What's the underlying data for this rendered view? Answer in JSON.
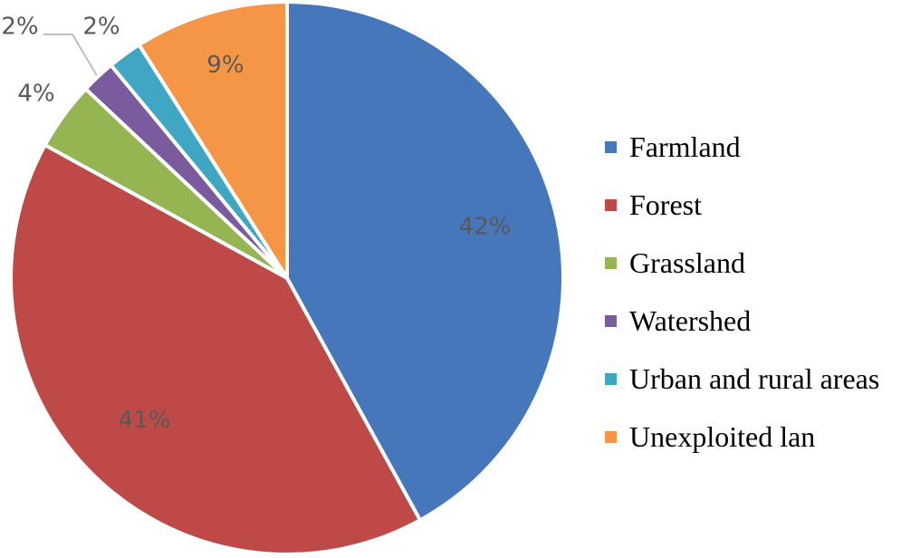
{
  "chart_data": {
    "type": "pie",
    "title": "",
    "series": [
      {
        "values": [
          42,
          41,
          4,
          2,
          2,
          9
        ]
      }
    ],
    "categories": [
      "Farmland",
      "Forest",
      "Grassland",
      "Watershed",
      "Urban and rural areas",
      "Unexploited lan"
    ],
    "data_labels": [
      "42%",
      "41%",
      "4%",
      "2%",
      "2%",
      "9%"
    ],
    "colors": [
      "#4677BA",
      "#BE4A47",
      "#94B551",
      "#7A5C9E",
      "#3FA7C4",
      "#F59646"
    ],
    "legend_position": "right",
    "start_angle": "12 o'clock",
    "direction": "clockwise"
  }
}
